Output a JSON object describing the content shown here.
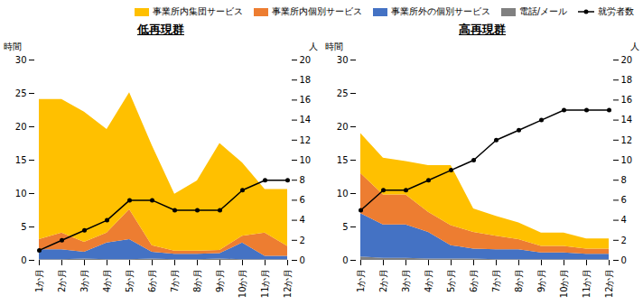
{
  "chart_data": [
    {
      "type": "area",
      "stacked": true,
      "title": "低再現群",
      "categories": [
        "1か月",
        "2か月",
        "3か月",
        "4か月",
        "5か月",
        "6か月",
        "7か月",
        "8か月",
        "9か月",
        "10か月",
        "11か月",
        "12か月"
      ],
      "ylabel": "時間",
      "y2label": "人",
      "ylim": [
        0,
        30
      ],
      "yticks": [
        0,
        5,
        10,
        15,
        20,
        25,
        30
      ],
      "y2lim": [
        0,
        20
      ],
      "y2ticks": [
        0,
        2,
        4,
        6,
        8,
        10,
        12,
        14,
        16,
        18,
        20
      ],
      "legend": "upper right",
      "series": [
        {
          "name": "事業所内集団サービス",
          "color": "#FFC000",
          "values": [
            21.0,
            20.0,
            19.5,
            15.5,
            17.5,
            15.0,
            8.5,
            10.5,
            16.0,
            11.0,
            6.5,
            8.5
          ]
        },
        {
          "name": "事業所内個別サービス",
          "color": "#ED7D31",
          "values": [
            1.5,
            2.5,
            1.5,
            1.5,
            4.5,
            1.0,
            0.5,
            0.5,
            0.5,
            1.0,
            3.5,
            1.5
          ]
        },
        {
          "name": "事業所外の個別サービス",
          "color": "#4472C4",
          "values": [
            1.5,
            1.5,
            1.0,
            2.5,
            3.0,
            1.0,
            0.8,
            0.8,
            0.8,
            2.5,
            0.5,
            0.5
          ]
        },
        {
          "name": "電話/メール",
          "color": "#808080",
          "values": [
            0.1,
            0.1,
            0.2,
            0.1,
            0.1,
            0.2,
            0.1,
            0.1,
            0.2,
            0.1,
            0.1,
            0.1
          ]
        },
        {
          "name": "就労者数",
          "type": "line",
          "axis": "y2",
          "color": "#000000",
          "marker": "circle",
          "values": [
            1,
            2,
            3,
            4,
            6,
            6,
            5,
            5,
            5,
            7,
            8,
            8
          ]
        }
      ]
    },
    {
      "type": "area",
      "stacked": true,
      "title": "高再現群",
      "categories": [
        "1か月",
        "2か月",
        "3か月",
        "4か月",
        "5か月",
        "6か月",
        "7か月",
        "8か月",
        "9か月",
        "10か月",
        "11か月",
        "12か月"
      ],
      "ylabel": "時間",
      "y2label": "人",
      "ylim": [
        0,
        30
      ],
      "yticks": [
        0,
        5,
        10,
        15,
        20,
        25,
        30
      ],
      "y2lim": [
        0,
        20
      ],
      "y2ticks": [
        0,
        2,
        4,
        6,
        8,
        10,
        12,
        14,
        16,
        18,
        20
      ],
      "legend": "upper right",
      "series": [
        {
          "name": "事業所内集団サービス",
          "color": "#FFC000",
          "values": [
            6.0,
            5.5,
            5.0,
            7.0,
            9.0,
            3.5,
            3.0,
            2.5,
            2.0,
            2.0,
            1.5,
            1.5
          ]
        },
        {
          "name": "事業所内個別サービス",
          "color": "#ED7D31",
          "values": [
            6.0,
            4.5,
            4.5,
            3.0,
            3.0,
            2.5,
            2.0,
            1.5,
            1.0,
            1.0,
            0.8,
            0.8
          ]
        },
        {
          "name": "事業所外の個別サービス",
          "color": "#4472C4",
          "values": [
            6.5,
            5.0,
            5.0,
            4.0,
            2.0,
            1.5,
            1.5,
            1.5,
            1.0,
            1.0,
            0.8,
            0.8
          ]
        },
        {
          "name": "電話/メール",
          "color": "#808080",
          "values": [
            0.5,
            0.3,
            0.3,
            0.2,
            0.2,
            0.2,
            0.1,
            0.1,
            0.1,
            0.1,
            0.1,
            0.1
          ]
        },
        {
          "name": "就労者数",
          "type": "line",
          "axis": "y2",
          "color": "#000000",
          "marker": "circle",
          "values": [
            5,
            7,
            7,
            8,
            9,
            10,
            12,
            13,
            14,
            15,
            15,
            15
          ]
        }
      ]
    }
  ]
}
